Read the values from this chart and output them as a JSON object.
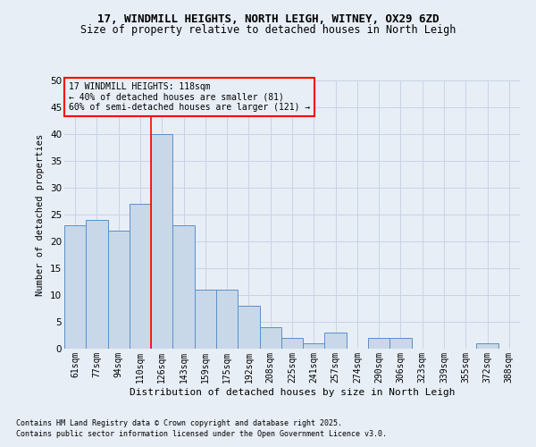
{
  "title1": "17, WINDMILL HEIGHTS, NORTH LEIGH, WITNEY, OX29 6ZD",
  "title2": "Size of property relative to detached houses in North Leigh",
  "xlabel": "Distribution of detached houses by size in North Leigh",
  "ylabel": "Number of detached properties",
  "categories": [
    "61sqm",
    "77sqm",
    "94sqm",
    "110sqm",
    "126sqm",
    "143sqm",
    "159sqm",
    "175sqm",
    "192sqm",
    "208sqm",
    "225sqm",
    "241sqm",
    "257sqm",
    "274sqm",
    "290sqm",
    "306sqm",
    "323sqm",
    "339sqm",
    "355sqm",
    "372sqm",
    "388sqm"
  ],
  "values": [
    23,
    24,
    22,
    27,
    40,
    23,
    11,
    11,
    8,
    4,
    2,
    1,
    3,
    0,
    2,
    2,
    0,
    0,
    0,
    1,
    0
  ],
  "bar_color": "#c8d8e8",
  "bar_edge_color": "#5b8fc9",
  "bar_linewidth": 0.7,
  "vline_color": "red",
  "vline_linewidth": 1.2,
  "annotation_box_text": "17 WINDMILL HEIGHTS: 118sqm\n← 40% of detached houses are smaller (81)\n60% of semi-detached houses are larger (121) →",
  "box_edge_color": "red",
  "ylim": [
    0,
    50
  ],
  "yticks": [
    0,
    5,
    10,
    15,
    20,
    25,
    30,
    35,
    40,
    45,
    50
  ],
  "grid_color": "#c8d4e4",
  "bg_color": "#e8eef6",
  "footnote1": "Contains HM Land Registry data © Crown copyright and database right 2025.",
  "footnote2": "Contains public sector information licensed under the Open Government Licence v3.0."
}
